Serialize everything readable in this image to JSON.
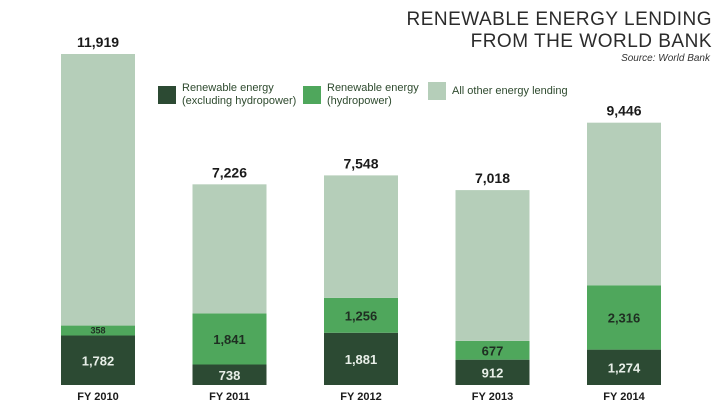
{
  "chart_data": {
    "type": "bar",
    "stacked": true,
    "title_lines": [
      "RENEWABLE ENERGY LENDING",
      "FROM THE WORLD BANK"
    ],
    "source": "Source: World Bank",
    "categories": [
      "FY 2010",
      "FY 2011",
      "FY 2012",
      "FY 2013",
      "FY 2014"
    ],
    "series": [
      {
        "name": "Renewable energy (excluding hydropower)",
        "label_lines": [
          "Renewable energy",
          "(excluding hydropower)"
        ],
        "values": [
          1782,
          738,
          1881,
          912,
          1274
        ],
        "labels": [
          "1,782",
          "738",
          "1,881",
          "912",
          "1,274"
        ]
      },
      {
        "name": "Renewable energy (hydropower)",
        "label_lines": [
          "Renewable energy",
          "(hydropower)"
        ],
        "values": [
          358,
          1841,
          1256,
          677,
          2316
        ],
        "labels": [
          "358",
          "1,841",
          "1,256",
          "677",
          "2,316"
        ]
      },
      {
        "name": "All other energy lending",
        "label_lines": [
          "All other energy lending"
        ],
        "values": [
          9779,
          4647,
          4411,
          5429,
          5856
        ],
        "labels": [
          "",
          "",
          "",
          "",
          ""
        ]
      }
    ],
    "totals": [
      11919,
      7226,
      7548,
      7018,
      9446
    ],
    "total_labels": [
      "11,919",
      "7,226",
      "7,548",
      "7,018",
      "9,446"
    ],
    "ylim": [
      0,
      11919
    ],
    "grid": false,
    "legend_position": "top"
  },
  "colors": {
    "non_hydro": "#2c4a33",
    "hydro": "#4fa75c",
    "other": "#b5ceb9",
    "bar_label_light": "#e8efe8",
    "bar_label_dark": "#1f2e22",
    "total_label": "#1a1a1a",
    "axis_label": "#1a1a1a"
  }
}
